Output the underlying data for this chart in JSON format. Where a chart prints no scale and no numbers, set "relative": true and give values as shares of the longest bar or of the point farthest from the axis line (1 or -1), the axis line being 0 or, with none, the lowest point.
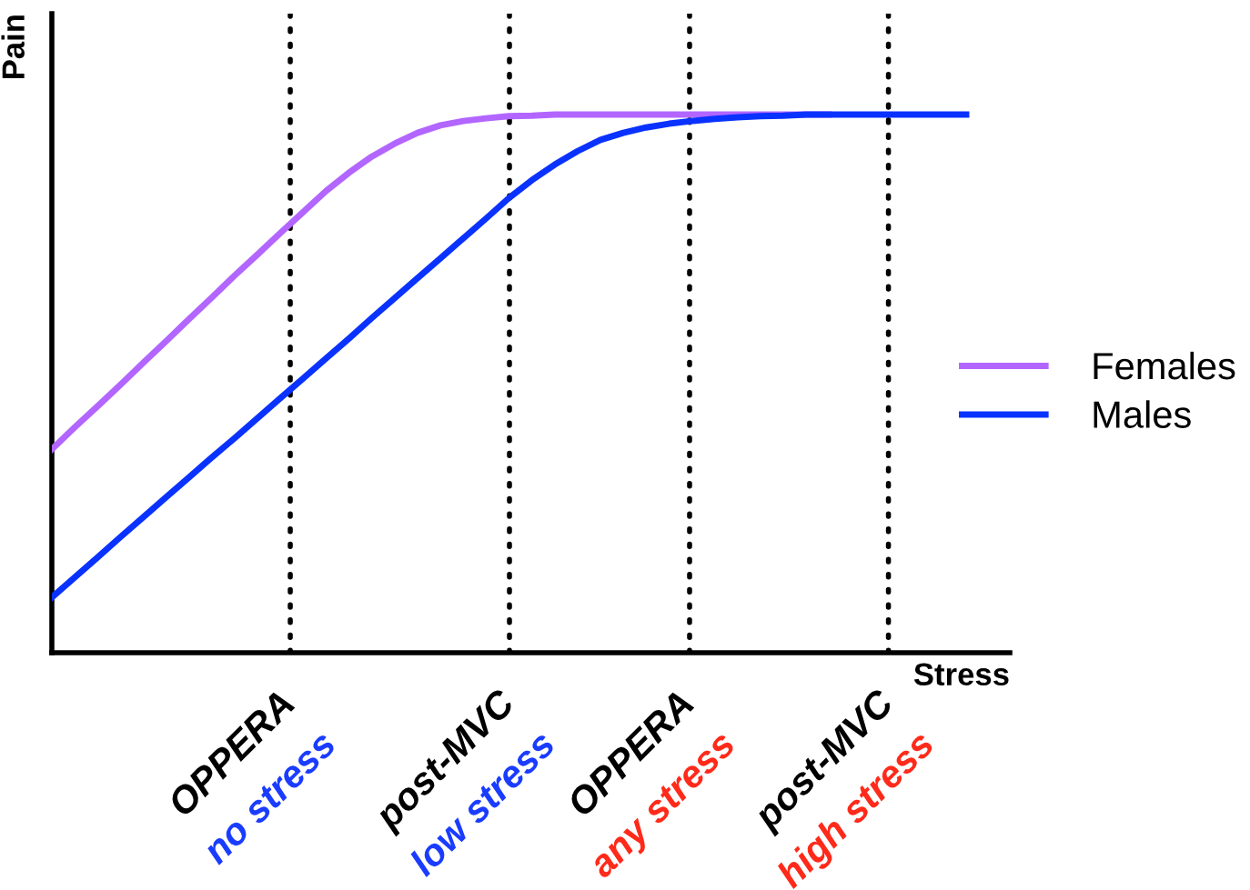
{
  "chart_data": {
    "type": "line",
    "relative": true,
    "xlabel": "Stress",
    "ylabel": "Pain",
    "categories": [
      null,
      null,
      null,
      null,
      null,
      null,
      null,
      null,
      null,
      null,
      null,
      null,
      null,
      null,
      null,
      null,
      null,
      null,
      null,
      null,
      null,
      null,
      null,
      null,
      null,
      null,
      null,
      null,
      null,
      null,
      null,
      null,
      null,
      null,
      null,
      null,
      null,
      null,
      null,
      null,
      null
    ],
    "series": [
      {
        "name": "Females",
        "color": "#b266ff",
        "values": [
          0.378,
          0.419,
          0.458,
          0.498,
          0.539,
          0.579,
          0.62,
          0.66,
          0.701,
          0.74,
          0.78,
          0.819,
          0.858,
          0.892,
          0.922,
          0.946,
          0.966,
          0.98,
          0.988,
          0.993,
          0.997,
          0.998,
          1,
          1,
          1,
          1,
          1,
          1,
          1,
          1,
          1,
          1,
          1,
          1,
          1,
          null,
          null,
          null,
          null,
          null,
          null
        ]
      },
      {
        "name": "Males",
        "color": "#0a32ff",
        "values": [
          0.103,
          0.14,
          0.177,
          0.215,
          0.252,
          0.289,
          0.326,
          0.363,
          0.399,
          0.436,
          0.473,
          0.51,
          0.547,
          0.584,
          0.622,
          0.659,
          0.696,
          0.733,
          0.77,
          0.807,
          0.845,
          0.878,
          0.907,
          0.932,
          0.953,
          0.966,
          0.976,
          0.983,
          0.988,
          0.992,
          0.995,
          0.997,
          0.998,
          1,
          1,
          1,
          1,
          1,
          1,
          1,
          1
        ]
      }
    ],
    "annotations": [
      "OPPERA",
      "no stress",
      "post-MVC",
      "low stress",
      "OPPERA",
      "any stress",
      "post-MVC",
      "high stress"
    ],
    "legend": "right",
    "marker": "none",
    "line_style": "solid"
  }
}
